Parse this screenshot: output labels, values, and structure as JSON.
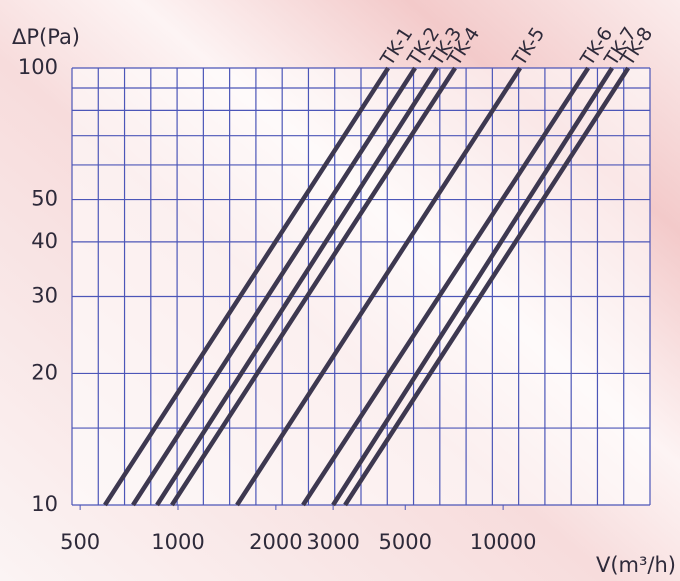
{
  "chart_data": {
    "type": "line",
    "y_label": "ΔP(Pa)",
    "x_label": "V(m³/h)",
    "xlog": true,
    "ylog": true,
    "grid": true,
    "xlim": [
      472,
      28300
    ],
    "xticks": [
      500,
      1000,
      2000,
      3000,
      5000,
      10000
    ],
    "ylim": [
      10,
      100
    ],
    "yticks": [
      10,
      20,
      30,
      40,
      50,
      100
    ],
    "yminor": [
      15,
      60,
      70,
      80,
      90
    ],
    "series": [
      {
        "name": "TK-1",
        "color": "#3d3850",
        "x": [
          596,
          4430
        ],
        "values": [
          10,
          100
        ]
      },
      {
        "name": "TK-2",
        "color": "#3d3850",
        "x": [
          727,
          5360
        ],
        "values": [
          10,
          100
        ]
      },
      {
        "name": "TK-3",
        "color": "#3d3850",
        "x": [
          862,
          6266
        ],
        "values": [
          10,
          100
        ]
      },
      {
        "name": "TK-4",
        "color": "#3d3850",
        "x": [
          958,
          7116
        ],
        "values": [
          10,
          100
        ]
      },
      {
        "name": "TK-5",
        "color": "#3d3850",
        "x": [
          1519,
          11280
        ],
        "values": [
          10,
          100
        ]
      },
      {
        "name": "TK-6",
        "color": "#3d3850",
        "x": [
          2424,
          18260
        ],
        "values": [
          10,
          100
        ]
      },
      {
        "name": "TK-7",
        "color": "#3d3850",
        "x": [
          2999,
          21630
        ],
        "values": [
          10,
          100
        ]
      },
      {
        "name": "TK-8",
        "color": "#3d3850",
        "x": [
          3265,
          24250
        ],
        "values": [
          10,
          100
        ]
      }
    ]
  }
}
